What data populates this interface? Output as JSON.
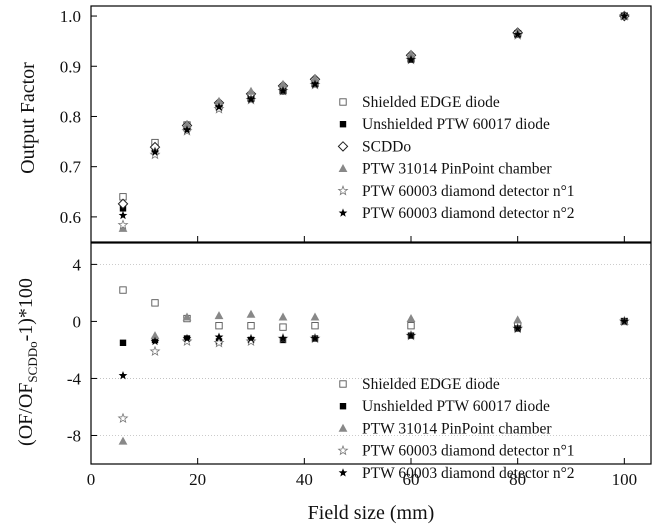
{
  "chart_data": [
    {
      "type": "scatter",
      "panel": "top",
      "ylabel": "Output Factor",
      "ylim": [
        0.55,
        1.02
      ],
      "yticks": [
        "0.6",
        "0.7",
        "0.8",
        "0.9",
        "1.0"
      ],
      "xlim": [
        0,
        105
      ],
      "grid": false,
      "legend_position": "center-right",
      "series": [
        {
          "name": "Shielded EDGE diode",
          "marker": "open-square",
          "x": [
            6,
            12,
            18,
            24,
            30,
            36,
            42,
            60,
            80,
            100
          ],
          "y": [
            0.64,
            0.748,
            0.783,
            0.822,
            0.837,
            0.852,
            0.866,
            0.915,
            0.965,
            1.0
          ]
        },
        {
          "name": "Unshielded PTW 60017 diode",
          "marker": "filled-square",
          "x": [
            6,
            12,
            18,
            24,
            30,
            36,
            42,
            60,
            80,
            100
          ],
          "y": [
            0.617,
            0.737,
            0.776,
            0.818,
            0.835,
            0.85,
            0.864,
            0.913,
            0.963,
            1.0
          ]
        },
        {
          "name": "SCDDo",
          "marker": "open-diamond",
          "x": [
            6,
            12,
            18,
            24,
            30,
            36,
            42,
            60,
            80,
            100
          ],
          "y": [
            0.626,
            0.739,
            0.782,
            0.827,
            0.845,
            0.861,
            0.874,
            0.922,
            0.967,
            1.0
          ]
        },
        {
          "name": "PTW 31014 PinPoint chamber",
          "marker": "filled-triangle",
          "x": [
            6,
            12,
            18,
            24,
            30,
            36,
            42,
            60,
            80,
            100
          ],
          "y": [
            0.577,
            0.731,
            0.784,
            0.83,
            0.85,
            0.864,
            0.876,
            0.924,
            0.968,
            1.0
          ]
        },
        {
          "name": "PTW 60003 diamond detector n°1",
          "marker": "open-star",
          "x": [
            6,
            12,
            18,
            24,
            30,
            36,
            42,
            60,
            80,
            100
          ],
          "y": [
            0.584,
            0.724,
            0.771,
            0.815,
            0.833,
            0.851,
            0.863,
            0.913,
            0.962,
            1.0
          ]
        },
        {
          "name": "PTW 60003 diamond detector n°2",
          "marker": "filled-star",
          "x": [
            6,
            12,
            18,
            24,
            30,
            36,
            42,
            60,
            80,
            100
          ],
          "y": [
            0.603,
            0.729,
            0.773,
            0.819,
            0.834,
            0.851,
            0.864,
            0.913,
            0.963,
            1.0
          ]
        }
      ]
    },
    {
      "type": "scatter",
      "panel": "bottom",
      "ylabel_main": "(OF/OF",
      "ylabel_sub": "SCDDo",
      "ylabel_tail": "-1)*100",
      "xlabel": "Field size (mm)",
      "ylim": [
        -10,
        5.5
      ],
      "yticks": [
        "4",
        "0",
        "-4",
        "-8"
      ],
      "xlim": [
        0,
        105
      ],
      "xticks": [
        "0",
        "20",
        "40",
        "60",
        "80",
        "100"
      ],
      "grid": "dotted horizontal",
      "legend_position": "bottom-right",
      "series": [
        {
          "name": "Shielded EDGE diode",
          "marker": "open-square",
          "x": [
            6,
            12,
            18,
            24,
            30,
            36,
            42,
            60,
            80,
            100
          ],
          "y": [
            2.2,
            1.3,
            0.2,
            -0.3,
            -0.3,
            -0.4,
            -0.3,
            -0.3,
            -0.3,
            0
          ]
        },
        {
          "name": "Unshielded PTW 60017 diode",
          "marker": "filled-square",
          "x": [
            6,
            12,
            18,
            24,
            30,
            36,
            42,
            60,
            80,
            100
          ],
          "y": [
            -1.5,
            -1.3,
            -1.2,
            -1.4,
            -1.3,
            -1.3,
            -1.2,
            -1.0,
            -0.5,
            0
          ]
        },
        {
          "name": "PTW 31014 PinPoint chamber",
          "marker": "filled-triangle",
          "x": [
            6,
            12,
            18,
            24,
            30,
            36,
            42,
            60,
            80,
            100
          ],
          "y": [
            -8.4,
            -1.0,
            0.3,
            0.4,
            0.5,
            0.3,
            0.3,
            0.2,
            0.1,
            0
          ]
        },
        {
          "name": "PTW 60003 diamond detector n°1",
          "marker": "open-star",
          "x": [
            6,
            12,
            18,
            24,
            30,
            36,
            42,
            60,
            80,
            100
          ],
          "y": [
            -6.8,
            -2.1,
            -1.4,
            -1.5,
            -1.4,
            -1.2,
            -1.2,
            -1.0,
            -0.5,
            0
          ]
        },
        {
          "name": "PTW 60003 diamond detector n°2",
          "marker": "filled-star",
          "x": [
            6,
            12,
            18,
            24,
            30,
            36,
            42,
            60,
            80,
            100
          ],
          "y": [
            -3.8,
            -1.4,
            -1.2,
            -1.1,
            -1.2,
            -1.2,
            -1.2,
            -1.0,
            -0.5,
            0
          ]
        }
      ]
    }
  ]
}
